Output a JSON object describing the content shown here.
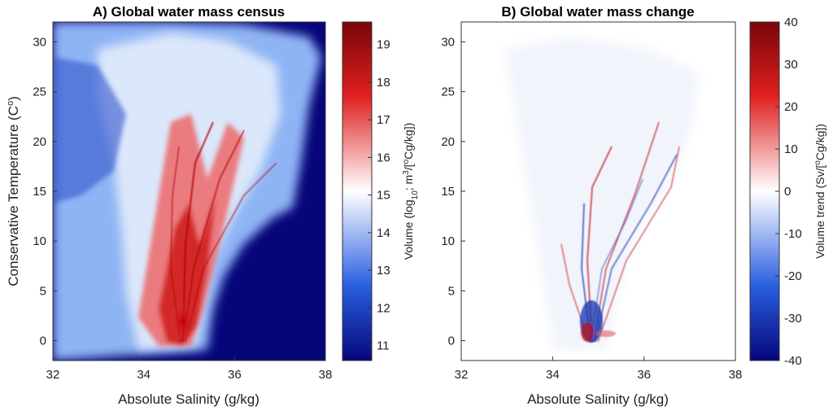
{
  "chart_data": [
    {
      "type": "heatmap",
      "title": "A) Global water mass census",
      "xlabel": "Absolute Salinity (g/kg)",
      "ylabel": "Conservative Temperature (C",
      "ylabel_sup": "o",
      "ylabel_end": ")",
      "xlim": [
        32,
        38
      ],
      "ylim": [
        -2,
        32
      ],
      "xticks": [
        32,
        34,
        36,
        38
      ],
      "yticks": [
        0,
        5,
        10,
        15,
        20,
        25,
        30
      ],
      "grid": false,
      "colorbar": {
        "label": "Volume (log",
        "label_sub": "10",
        "label_mid": "; m",
        "label_sup": "3",
        "label_mid2": "/[",
        "label_sup2": "o",
        "label_end": "Cg/kg])",
        "range": [
          10.6,
          19.6
        ],
        "ticks": [
          11,
          12,
          13,
          14,
          15,
          16,
          17,
          18,
          19
        ],
        "colormap": "blue-white-red",
        "low_color": "#06067a",
        "mid_color": "#ffffff",
        "high_color": "#7a0508"
      }
    },
    {
      "type": "heatmap",
      "title": "B) Global water mass change",
      "xlabel": "Absolute Salinity (g/kg)",
      "xlim": [
        32,
        38
      ],
      "ylim": [
        -2,
        32
      ],
      "xticks": [
        32,
        34,
        36,
        38
      ],
      "yticks": [
        0,
        5,
        10,
        15,
        20,
        25,
        30
      ],
      "grid": false,
      "colorbar": {
        "label": "Volume trend (Sv/[",
        "label_sup": "o",
        "label_end": "Cg/kg])",
        "range": [
          -40,
          40
        ],
        "ticks": [
          40,
          30,
          20,
          10,
          0,
          -10,
          -20,
          -30,
          -40
        ],
        "colormap": "blue-white-red",
        "low_color": "#06067a",
        "mid_color": "#ffffff",
        "high_color": "#7a0508"
      }
    }
  ]
}
